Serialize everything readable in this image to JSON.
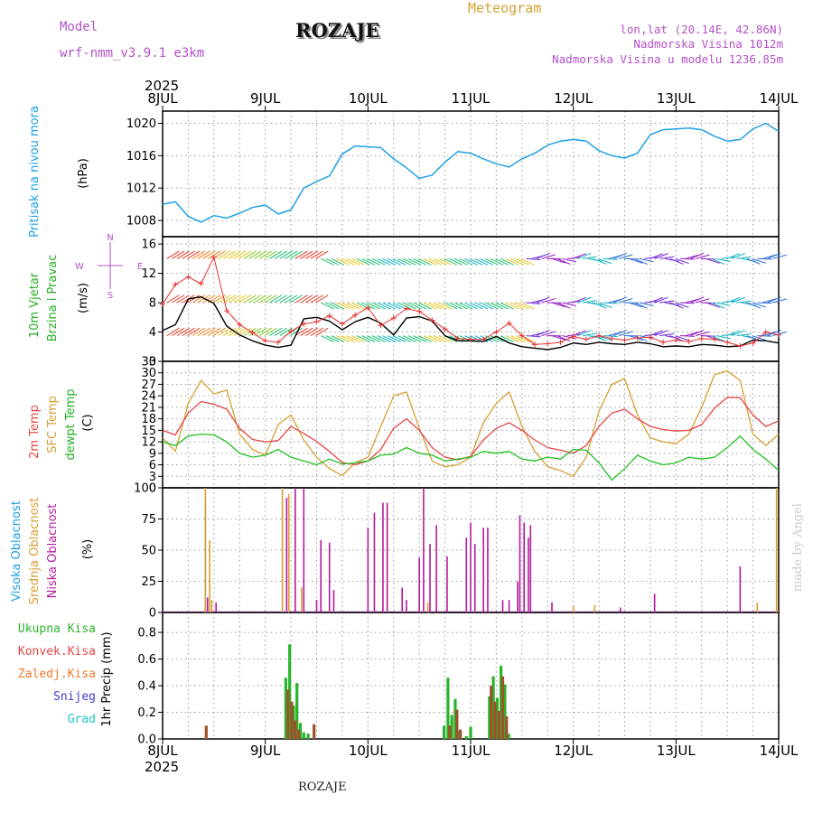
{
  "header": {
    "model_label": "Model",
    "model_name": "wrf-nmm_v3.9.1 e3km",
    "station": "ROZAJE",
    "product": "Meteogram",
    "coords": "lon,lat (20.14E, 42.86N)",
    "elevation": "Nadmorska Visina 1012m",
    "model_elevation": "Nadmorska Visina u modelu 1236.85m",
    "year_top": "2025",
    "year_bottom": "2025",
    "footer": "ROZAJE",
    "watermark": "made by Angel"
  },
  "colors": {
    "pressure": "#1ea0e6",
    "temp2m": "#e64646",
    "sfc_temp": "#d7a032",
    "dewpoint": "#22c022",
    "high_cloud": "#1ea0e6",
    "mid_cloud": "#d7a032",
    "low_cloud": "#b4199c",
    "total_precip": "#28b428",
    "conv_precip": "#a0502d",
    "freezing_precip": "#f07828",
    "snow": "#4040d0",
    "hail": "#19c8c8",
    "wind_gust": "#e63232",
    "wind_speed": "#000000",
    "wind_compass": "#b450c8"
  },
  "chart_data": {
    "type": "meteogram",
    "time_axis": {
      "unit": "hours since 2025-07-08 00:00",
      "range": [
        0,
        144
      ],
      "tick_labels": [
        "8JUL",
        "9JUL",
        "10JUL",
        "11JUL",
        "12JUL",
        "13JUL",
        "14JUL"
      ],
      "tick_hours": [
        0,
        24,
        48,
        72,
        96,
        120,
        144
      ]
    },
    "panels": [
      {
        "id": "pressure",
        "type": "line",
        "ylabel": "Pritisak na nivou mora",
        "unit": "(hPa)",
        "ylim": [
          1006,
          1021.5
        ],
        "ticks": [
          1008,
          1012,
          1016,
          1020
        ],
        "series": [
          {
            "name": "MSLP",
            "x": [
              0,
              3,
              6,
              9,
              12,
              15,
              18,
              21,
              24,
              27,
              30,
              33,
              36,
              39,
              42,
              45,
              48,
              51,
              54,
              57,
              60,
              63,
              66,
              69,
              72,
              75,
              78,
              81,
              84,
              87,
              90,
              93,
              96,
              99,
              102,
              105,
              108,
              111,
              114,
              117,
              120,
              123,
              126,
              129,
              132,
              135,
              138,
              141,
              144
            ],
            "values": [
              1010,
              1010.3,
              1008.5,
              1007.8,
              1008.6,
              1008.3,
              1008.9,
              1009.6,
              1009.9,
              1008.8,
              1009.3,
              1012.0,
              1012.8,
              1013.5,
              1016.2,
              1017.2,
              1017.1,
              1017.0,
              1015.6,
              1014.5,
              1013.2,
              1013.6,
              1015.2,
              1016.5,
              1016.3,
              1015.6,
              1015.0,
              1014.6,
              1015.6,
              1016.3,
              1017.3,
              1017.8,
              1018.0,
              1017.8,
              1016.6,
              1016.0,
              1015.7,
              1016.3,
              1018.6,
              1019.2,
              1019.3,
              1019.4,
              1019.2,
              1018.4,
              1017.8,
              1018.0,
              1019.3,
              1020.0,
              1019.0
            ]
          }
        ]
      },
      {
        "id": "wind",
        "type": "line+barbs",
        "ylabel": "10m Vjetar",
        "ylabel2": "Brzina i Pravac",
        "unit": "(m/s)",
        "compass": [
          "N",
          "E",
          "S",
          "W"
        ],
        "ylim": [
          0,
          17
        ],
        "ticks": [
          0,
          4,
          8,
          12,
          16
        ],
        "barb_rows_ms": [
          14,
          8,
          3.5
        ],
        "series": [
          {
            "name": "10m wind speed",
            "x": [
              0,
              3,
              6,
              9,
              12,
              15,
              18,
              21,
              24,
              27,
              30,
              33,
              36,
              39,
              42,
              45,
              48,
              51,
              54,
              57,
              60,
              63,
              66,
              69,
              72,
              75,
              78,
              81,
              84,
              87,
              90,
              93,
              96,
              99,
              102,
              105,
              108,
              111,
              114,
              117,
              120,
              123,
              126,
              129,
              132,
              135,
              138,
              141,
              144
            ],
            "values": [
              4.2,
              5.0,
              8.5,
              8.8,
              7.9,
              4.8,
              3.6,
              2.8,
              2.2,
              1.9,
              2.2,
              5.8,
              6.0,
              5.5,
              4.3,
              5.4,
              6.0,
              5.2,
              3.6,
              5.9,
              6.1,
              5.5,
              3.5,
              2.8,
              2.8,
              2.7,
              3.4,
              2.5,
              2.0,
              1.8,
              1.6,
              1.9,
              2.5,
              2.3,
              2.6,
              2.4,
              2.3,
              2.6,
              2.4,
              2.0,
              2.1,
              2.0,
              2.3,
              2.2,
              2.0,
              2.1,
              2.9,
              2.8,
              2.5
            ]
          },
          {
            "name": "10m wind gust",
            "x": [
              0,
              3,
              6,
              9,
              12,
              15,
              18,
              21,
              24,
              27,
              30,
              33,
              36,
              39,
              42,
              45,
              48,
              51,
              54,
              57,
              60,
              63,
              66,
              69,
              72,
              75,
              78,
              81,
              84,
              87,
              90,
              93,
              96,
              99,
              102,
              105,
              108,
              111,
              114,
              117,
              120,
              123,
              126,
              129,
              132,
              135,
              138,
              141,
              144
            ],
            "values": [
              7.8,
              10.5,
              11.5,
              10.6,
              14.2,
              6.9,
              5.0,
              3.9,
              2.8,
              2.6,
              4.1,
              5.1,
              5.4,
              6.2,
              5.1,
              6.3,
              7.3,
              4.9,
              5.9,
              7.2,
              6.8,
              5.6,
              4.4,
              3.1,
              3.0,
              3.0,
              4.0,
              5.2,
              3.5,
              2.3,
              2.4,
              2.6,
              3.4,
              3.0,
              3.5,
              3.1,
              2.9,
              3.2,
              3.3,
              2.6,
              2.9,
              2.7,
              3.1,
              3.0,
              2.6,
              2.1,
              2.5,
              4.0,
              3.6
            ]
          }
        ]
      },
      {
        "id": "temperature",
        "type": "line",
        "ylabel": "2m Temp",
        "ylabel2": "SFC Temp",
        "ylabel3": "dewpt Temp",
        "unit": "(C)",
        "ylim": [
          0,
          33
        ],
        "ticks": [
          0,
          3,
          6,
          9,
          12,
          15,
          18,
          21,
          24,
          27,
          30,
          33
        ],
        "series": [
          {
            "name": "2m Temp",
            "x": [
              0,
              3,
              6,
              9,
              12,
              15,
              18,
              21,
              24,
              27,
              30,
              33,
              36,
              39,
              42,
              45,
              48,
              51,
              54,
              57,
              60,
              63,
              66,
              69,
              72,
              75,
              78,
              81,
              84,
              87,
              90,
              93,
              96,
              99,
              102,
              105,
              108,
              111,
              114,
              117,
              120,
              123,
              126,
              129,
              132,
              135,
              138,
              141,
              144
            ],
            "values": [
              15.0,
              13.8,
              19.5,
              22.5,
              21.8,
              20.5,
              15.5,
              12.6,
              12.0,
              12.3,
              16.0,
              14.2,
              12.1,
              9.5,
              6.6,
              6.0,
              7.0,
              10.0,
              15.5,
              18.0,
              15.0,
              10.5,
              8.0,
              7.3,
              8.2,
              12.5,
              15.5,
              17.0,
              15.0,
              12.5,
              10.5,
              9.8,
              9.0,
              11.0,
              16.0,
              19.5,
              20.5,
              18.0,
              16.0,
              15.2,
              14.8,
              15.0,
              16.5,
              20.8,
              23.6,
              23.5,
              19.0,
              16.0,
              17.5
            ]
          },
          {
            "name": "SFC Temp",
            "x": [
              0,
              3,
              6,
              9,
              12,
              15,
              18,
              21,
              24,
              27,
              30,
              33,
              36,
              39,
              42,
              45,
              48,
              51,
              54,
              57,
              60,
              63,
              66,
              69,
              72,
              75,
              78,
              81,
              84,
              87,
              90,
              93,
              96,
              99,
              102,
              105,
              108,
              111,
              114,
              117,
              120,
              123,
              126,
              129,
              132,
              135,
              138,
              141,
              144
            ],
            "values": [
              13.0,
              9.5,
              22.0,
              28.0,
              24.5,
              25.5,
              14.0,
              10.0,
              8.5,
              16.5,
              19.0,
              12.5,
              8.0,
              5.0,
              3.2,
              6.5,
              8.0,
              16.0,
              24.0,
              25.0,
              15.5,
              7.0,
              5.5,
              6.0,
              8.0,
              17.0,
              22.0,
              25.0,
              16.0,
              9.5,
              5.5,
              4.5,
              3.0,
              8.0,
              20.0,
              27.0,
              28.5,
              19.0,
              13.0,
              12.0,
              11.5,
              14.0,
              21.0,
              29.5,
              30.5,
              28.0,
              14.0,
              11.0,
              14.0
            ]
          },
          {
            "name": "dewpt Temp",
            "x": [
              0,
              3,
              6,
              9,
              12,
              15,
              18,
              21,
              24,
              27,
              30,
              33,
              36,
              39,
              42,
              45,
              48,
              51,
              54,
              57,
              60,
              63,
              66,
              69,
              72,
              75,
              78,
              81,
              84,
              87,
              90,
              93,
              96,
              99,
              102,
              105,
              108,
              111,
              114,
              117,
              120,
              123,
              126,
              129,
              132,
              135,
              138,
              141,
              144
            ],
            "values": [
              12.0,
              11.0,
              13.5,
              14.0,
              13.8,
              12.0,
              9.0,
              8.0,
              8.5,
              10.0,
              8.0,
              7.0,
              6.0,
              7.5,
              6.2,
              6.5,
              7.0,
              8.5,
              8.8,
              10.5,
              9.0,
              8.5,
              7.0,
              7.5,
              8.0,
              9.5,
              9.0,
              9.5,
              7.5,
              7.0,
              8.0,
              7.5,
              10.0,
              9.8,
              6.5,
              2.0,
              5.0,
              8.5,
              7.0,
              6.0,
              6.5,
              8.0,
              7.5,
              8.0,
              10.5,
              13.5,
              10.0,
              7.5,
              4.5
            ]
          }
        ]
      },
      {
        "id": "cloud",
        "type": "bar",
        "ylabel": "Visoka Oblacnost",
        "ylabel2": "Srednja Oblacnost",
        "ylabel3": "Niska Oblacnost",
        "unit": "(%)",
        "ylim": [
          0,
          100
        ],
        "ticks": [
          0,
          25,
          50,
          75,
          100
        ],
        "series": [
          {
            "name": "Visoka Oblacnost",
            "x": [
              10
            ],
            "values": [
              90
            ]
          },
          {
            "name": "Srednja Oblacnost",
            "x": [
              10,
              11,
              11.5,
              28,
              29.5,
              32.5,
              62,
              96,
              101,
              139,
              143.5
            ],
            "values": [
              100,
              58,
              10,
              100,
              95,
              20,
              8,
              5,
              6,
              8,
              100
            ]
          },
          {
            "name": "Niska Oblacnost",
            "x": [
              10.5,
              12.5,
              29,
              31,
              33,
              36,
              37,
              39,
              40,
              48,
              49.5,
              51.5,
              52.5,
              56,
              57,
              60,
              61,
              62.5,
              64,
              66.5,
              71,
              72,
              73,
              75,
              76,
              79.5,
              81,
              83,
              83.5,
              84.5,
              85.5,
              86,
              91,
              107,
              115,
              135
            ],
            "values": [
              12,
              8,
              92,
              100,
              100,
              10,
              58,
              56,
              18,
              68,
              80,
              88,
              88,
              20,
              10,
              44,
              100,
              55,
              70,
              45,
              60,
              72,
              55,
              68,
              68,
              10,
              10,
              25,
              78,
              72,
              60,
              70,
              8,
              4,
              15,
              37
            ]
          }
        ]
      },
      {
        "id": "precip",
        "type": "bar",
        "ylabel": "1hr Precip (mm)",
        "legend": [
          "Ukupna Kisa",
          "Konvek.Kisa",
          "Zaledj.Kisa",
          "Snijeg",
          "Grad"
        ],
        "ylim": [
          0,
          0.95
        ],
        "ticks": [
          0.0,
          0.2,
          0.4,
          0.6,
          0.8
        ],
        "series": [
          {
            "name": "Ukupna Kisa",
            "x": [
              28.8,
              29.7,
              30.6,
              31.4,
              32.2,
              33.0,
              34.0,
              65.8,
              66.7,
              67.6,
              68.4,
              69.2,
              71.0,
              72.0,
              76.4,
              77.3,
              78.2,
              79.1,
              80.0,
              80.9
            ],
            "values": [
              0.46,
              0.71,
              0.25,
              0.42,
              0.12,
              0.05,
              0.04,
              0.1,
              0.46,
              0.18,
              0.3,
              0.06,
              0.02,
              0.09,
              0.32,
              0.47,
              0.31,
              0.55,
              0.41,
              0.04
            ]
          },
          {
            "name": "Konvek.Kisa",
            "x": [
              10.2,
              29.3,
              30.2,
              31.0,
              31.8,
              35.4,
              67.1,
              68.8,
              69.6,
              76.8,
              77.7,
              78.6,
              79.5,
              80.4
            ],
            "values": [
              0.1,
              0.37,
              0.28,
              0.14,
              0.07,
              0.11,
              0.1,
              0.22,
              0.07,
              0.4,
              0.28,
              0.21,
              0.47,
              0.17
            ]
          }
        ]
      }
    ]
  }
}
